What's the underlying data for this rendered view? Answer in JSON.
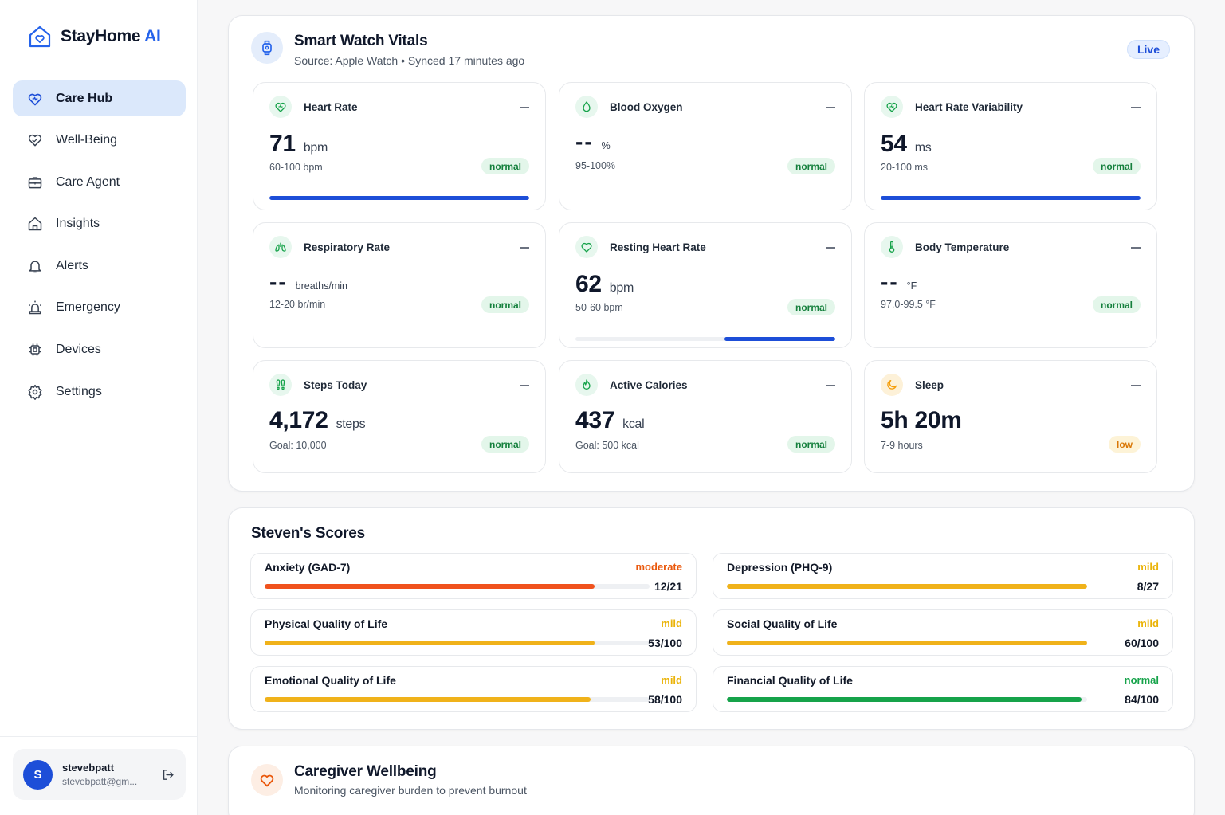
{
  "brand": {
    "name": "StayHome",
    "suffix": "AI"
  },
  "nav": [
    {
      "label": "Care Hub",
      "icon": "heart-shield-icon",
      "active": true
    },
    {
      "label": "Well-Being",
      "icon": "heart-hand-icon",
      "active": false
    },
    {
      "label": "Care Agent",
      "icon": "briefcase-medical-icon",
      "active": false
    },
    {
      "label": "Insights",
      "icon": "home-icon",
      "active": false
    },
    {
      "label": "Alerts",
      "icon": "bell-icon",
      "active": false
    },
    {
      "label": "Emergency",
      "icon": "siren-icon",
      "active": false
    },
    {
      "label": "Devices",
      "icon": "cpu-icon",
      "active": false
    },
    {
      "label": "Settings",
      "icon": "gear-icon",
      "active": false
    }
  ],
  "user": {
    "initial": "S",
    "name": "stevebpatt",
    "email": "stevebpatt@gm..."
  },
  "vitals": {
    "title": "Smart Watch Vitals",
    "subtitle": "Source: Apple Watch • Synced 17 minutes ago",
    "live": "Live",
    "cards": [
      {
        "title": "Heart Rate",
        "icon": "heart-pulse-icon",
        "value": "71",
        "unit": "bpm",
        "range": "60-100 bpm",
        "status": "normal",
        "progress": 1.0
      },
      {
        "title": "Blood Oxygen",
        "icon": "droplet-icon",
        "value": "--",
        "unit": "%",
        "range": "95-100%",
        "status": "normal",
        "progress": null
      },
      {
        "title": "Heart Rate Variability",
        "icon": "heart-pulse-icon",
        "value": "54",
        "unit": "ms",
        "range": "20-100 ms",
        "status": "normal",
        "progress": 1.0
      },
      {
        "title": "Respiratory Rate",
        "icon": "lungs-icon",
        "value": "--",
        "unit": "breaths/min",
        "range": "12-20 br/min",
        "status": "normal",
        "progress": null
      },
      {
        "title": "Resting Heart Rate",
        "icon": "heart-icon",
        "value": "62",
        "unit": "bpm",
        "range": "50-60 bpm",
        "status": "normal",
        "progress": 0.42
      },
      {
        "title": "Body Temperature",
        "icon": "thermometer-icon",
        "value": "--",
        "unit": "°F",
        "range": "97.0-99.5 °F",
        "status": "normal",
        "progress": null
      },
      {
        "title": "Steps Today",
        "icon": "footprints-icon",
        "value": "4,172",
        "unit": "steps",
        "range": "Goal: 10,000",
        "status": "normal",
        "progress": null
      },
      {
        "title": "Active Calories",
        "icon": "flame-icon",
        "value": "437",
        "unit": "kcal",
        "range": "Goal: 500 kcal",
        "status": "normal",
        "progress": null
      },
      {
        "title": "Sleep",
        "icon": "moon-icon",
        "value": "5h 20m",
        "unit": "",
        "range": "7-9 hours",
        "status": "low",
        "progress": null
      }
    ]
  },
  "scores": {
    "title": "Steven's Scores",
    "items": [
      {
        "name": "Anxiety (GAD-7)",
        "level": "moderate",
        "score": "12/21",
        "fraction": 0.857,
        "color": "#f0521d",
        "level_color": "#ea580c"
      },
      {
        "name": "Depression (PHQ-9)",
        "level": "mild",
        "score": "8/27",
        "fraction": 1.0,
        "color": "#f0b21a",
        "level_color": "#eab308"
      },
      {
        "name": "Physical Quality of Life",
        "level": "mild",
        "score": "53/100",
        "fraction": 0.857,
        "color": "#f0b21a",
        "level_color": "#eab308"
      },
      {
        "name": "Social Quality of Life",
        "level": "mild",
        "score": "60/100",
        "fraction": 1.0,
        "color": "#f0b21a",
        "level_color": "#eab308"
      },
      {
        "name": "Emotional Quality of Life",
        "level": "mild",
        "score": "58/100",
        "fraction": 0.847,
        "color": "#f0b21a",
        "level_color": "#eab308"
      },
      {
        "name": "Financial Quality of Life",
        "level": "normal",
        "score": "84/100",
        "fraction": 0.985,
        "color": "#16a34a",
        "level_color": "#16a34a"
      }
    ]
  },
  "caregiver": {
    "title": "Caregiver Wellbeing",
    "subtitle": "Monitoring caregiver burden to prevent burnout"
  }
}
